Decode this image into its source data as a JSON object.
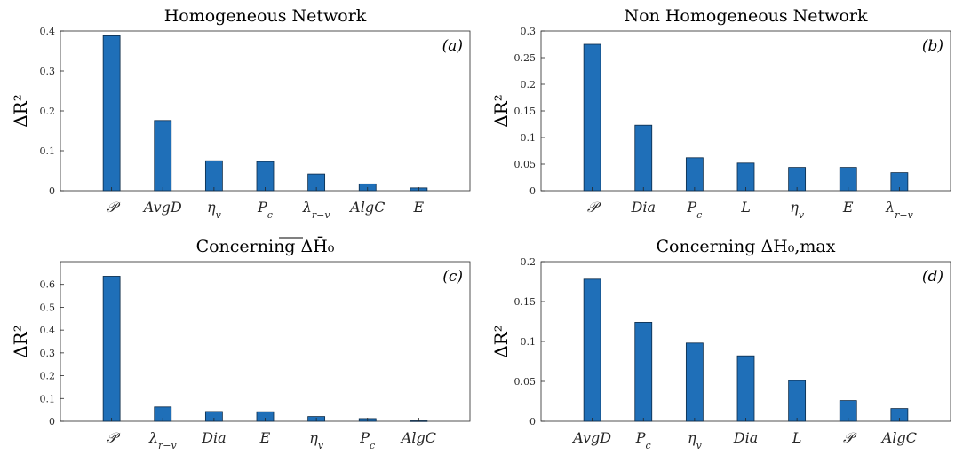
{
  "chart_data": [
    {
      "type": "bar",
      "title": "Homogeneous Network",
      "panel_label": "(a)",
      "ylabel": "ΔR²",
      "ylim": [
        0,
        0.4
      ],
      "yticks": [
        "0",
        "0.1",
        "0.2",
        "0.3",
        "0.4"
      ],
      "categories": [
        "𝒫",
        "AvgD",
        "η_v",
        "P_c",
        "λ_r−v",
        "AlgC",
        "E"
      ],
      "values": [
        0.388,
        0.176,
        0.075,
        0.073,
        0.042,
        0.017,
        0.007
      ],
      "color": "#1f6fb8"
    },
    {
      "type": "bar",
      "title": "Non Homogeneous Network",
      "panel_label": "(b)",
      "ylabel": "ΔR²",
      "ylim": [
        0,
        0.3
      ],
      "yticks": [
        "0",
        "0.05",
        "0.1",
        "0.15",
        "0.2",
        "0.25",
        "0.3"
      ],
      "categories": [
        "𝒫",
        "Dia",
        "P_c",
        "L",
        "η_v",
        "E",
        "λ_r−v"
      ],
      "values": [
        0.275,
        0.123,
        0.062,
        0.052,
        0.044,
        0.044,
        0.034
      ],
      "color": "#1f6fb8"
    },
    {
      "type": "bar",
      "title": "Concerning ΔH̄₀",
      "panel_label": "(c)",
      "ylabel": "ΔR²",
      "ylim": [
        0,
        0.7
      ],
      "yticks": [
        "0",
        "0.1",
        "0.2",
        "0.3",
        "0.4",
        "0.5",
        "0.6"
      ],
      "categories": [
        "𝒫",
        "λ_r−v",
        "Dia",
        "E",
        "η_v",
        "P_c",
        "AlgC"
      ],
      "values": [
        0.636,
        0.063,
        0.043,
        0.042,
        0.021,
        0.012,
        0.002
      ],
      "color": "#1f6fb8"
    },
    {
      "type": "bar",
      "title": "Concerning ΔH₀,max",
      "panel_label": "(d)",
      "ylabel": "ΔR²",
      "ylim": [
        0,
        0.2
      ],
      "yticks": [
        "0",
        "0.05",
        "0.1",
        "0.15",
        "0.2"
      ],
      "categories": [
        "AvgD",
        "P_c",
        "η_v",
        "Dia",
        "L",
        "𝒫",
        "AlgC"
      ],
      "values": [
        0.178,
        0.124,
        0.098,
        0.082,
        0.051,
        0.026,
        0.016
      ],
      "color": "#1f6fb8"
    }
  ]
}
